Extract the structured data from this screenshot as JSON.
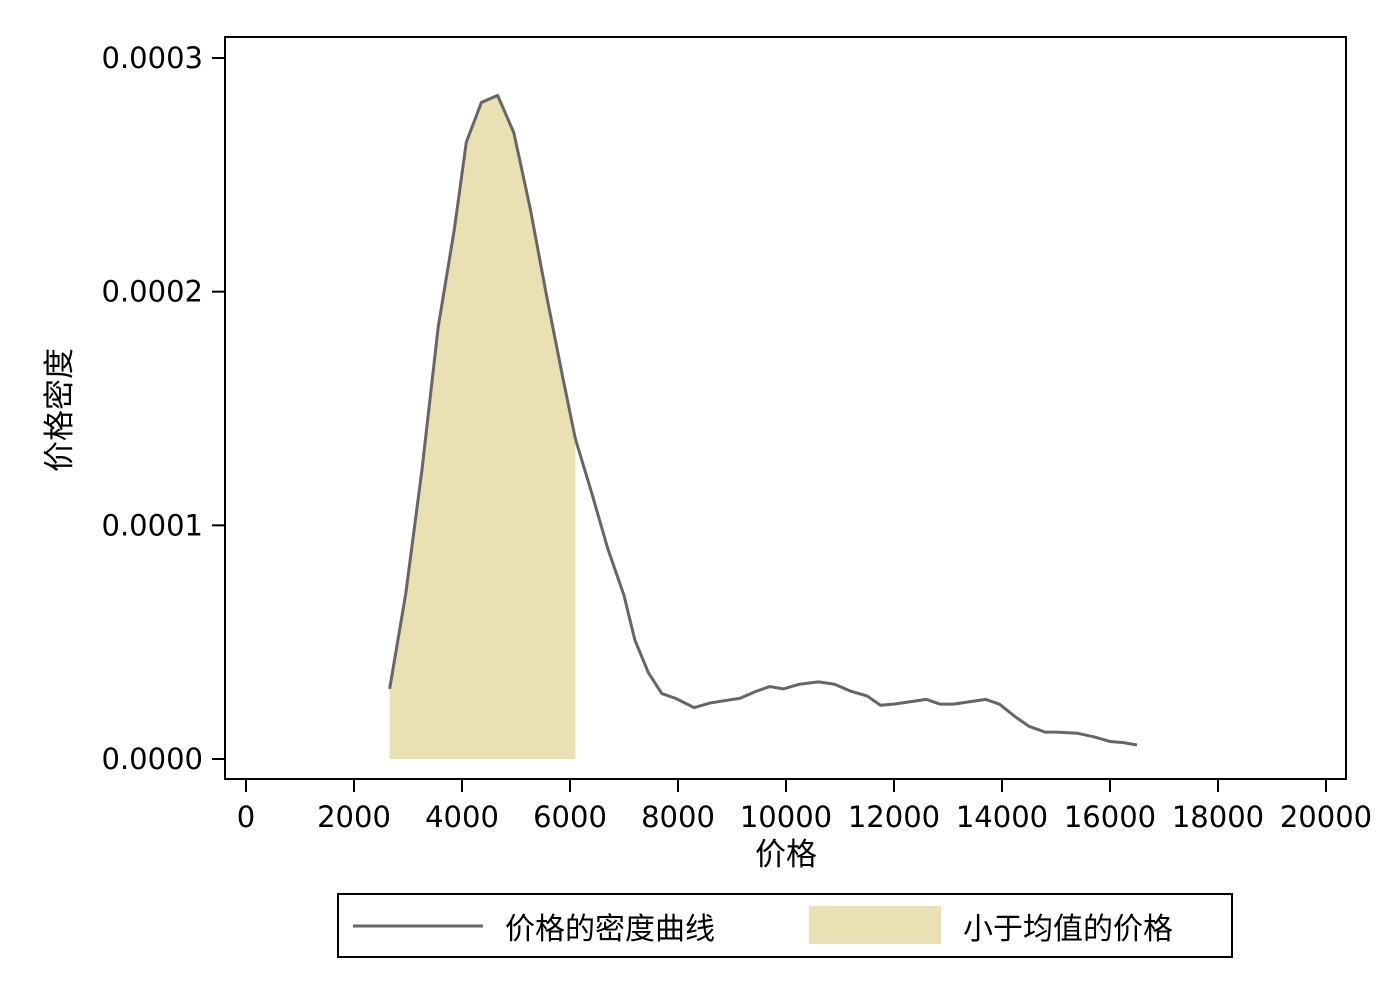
{
  "chart_data": {
    "type": "area",
    "title": "",
    "xlabel": "价格",
    "ylabel": "价格密度",
    "xlim": [
      0,
      20000
    ],
    "ylim": [
      0,
      0.0003
    ],
    "grid": false,
    "legend_position": "bottom",
    "x_ticks": [
      {
        "value": 0,
        "label": "0"
      },
      {
        "value": 2000,
        "label": "2000"
      },
      {
        "value": 4000,
        "label": "4000"
      },
      {
        "value": 6000,
        "label": "6000"
      },
      {
        "value": 8000,
        "label": "8000"
      },
      {
        "value": 10000,
        "label": "10000"
      },
      {
        "value": 12000,
        "label": "12000"
      },
      {
        "value": 14000,
        "label": "14000"
      },
      {
        "value": 16000,
        "label": "16000"
      },
      {
        "value": 18000,
        "label": "18000"
      },
      {
        "value": 20000,
        "label": "20000"
      }
    ],
    "y_ticks": [
      {
        "value": 0,
        "label": "0.0000"
      },
      {
        "value": 0.0001,
        "label": "0.0001"
      },
      {
        "value": 0.0002,
        "label": "0.0002"
      },
      {
        "value": 0.0003,
        "label": "0.0003"
      }
    ],
    "series": [
      {
        "name": "价格的密度曲线",
        "kind": "line",
        "color": "#666666",
        "x": [
          2660,
          2960,
          3260,
          3560,
          3860,
          4080,
          4360,
          4660,
          4960,
          5260,
          5560,
          5860,
          6100,
          6400,
          6700,
          7000,
          7200,
          7450,
          7700,
          7950,
          8300,
          8600,
          9150,
          9450,
          9700,
          9950,
          10250,
          10600,
          10900,
          11200,
          11500,
          11750,
          12000,
          12300,
          12600,
          12850,
          13100,
          13400,
          13700,
          13950,
          14250,
          14500,
          14800,
          15000,
          15400,
          15700,
          16000,
          16250,
          16500
        ],
        "y": [
          3e-05,
          7.1e-05,
          0.000124,
          0.000185,
          0.000227,
          0.000264,
          0.000281,
          0.000284,
          0.000268,
          0.000236,
          0.000199,
          0.000164,
          0.000137,
          0.000114,
          9e-05,
          7e-05,
          5.1e-05,
          3.7e-05,
          2.8e-05,
          2.6e-05,
          2.2e-05,
          2.4e-05,
          2.6e-05,
          2.9e-05,
          3.1e-05,
          3e-05,
          3.2e-05,
          3.3e-05,
          3.2e-05,
          2.9e-05,
          2.7e-05,
          2.3e-05,
          2.35e-05,
          2.45e-05,
          2.55e-05,
          2.35e-05,
          2.35e-05,
          2.45e-05,
          2.55e-05,
          2.35e-05,
          1.8e-05,
          1.4e-05,
          1.15e-05,
          1.15e-05,
          1.1e-05,
          9.5e-06,
          7.5e-06,
          7e-06,
          6e-06
        ]
      },
      {
        "name": "小于均值的价格",
        "kind": "area",
        "color": "#e9e0b3",
        "x_range": [
          2660,
          6100
        ]
      }
    ]
  }
}
